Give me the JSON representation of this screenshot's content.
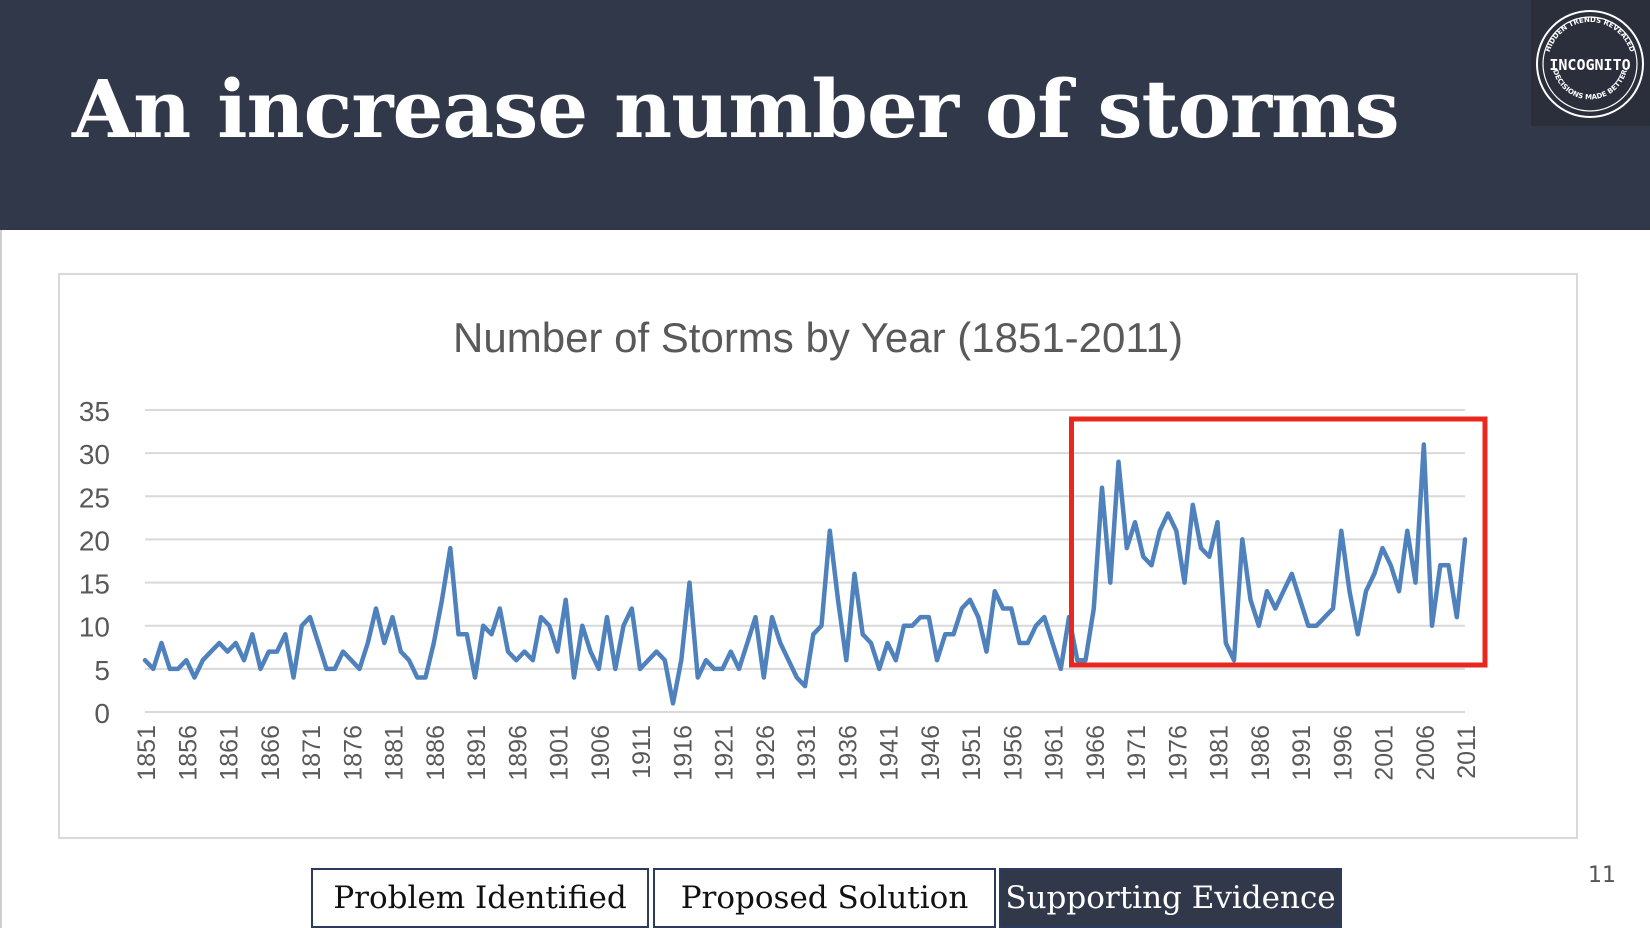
{
  "slide": {
    "title": "An increase number of storms",
    "page_number": "11"
  },
  "logo": {
    "name": "INCOGNITO",
    "arc_top": "HIDDEN TRENDS REVEALED",
    "arc_bottom": "DECISIONS MADE BETTER"
  },
  "nav": {
    "items": [
      "Problem Identified",
      "Proposed Solution",
      "Supporting Evidence"
    ],
    "active": "Supporting Evidence"
  },
  "colors": {
    "header_bg": "#313849",
    "line": "#4f81bd",
    "highlight": "#e8281e",
    "grid": "#d9d9d9"
  },
  "chart_data": {
    "type": "line",
    "title": "Number of Storms by Year (1851-2011)",
    "xlabel": "",
    "ylabel": "",
    "ylim": [
      0,
      35
    ],
    "yticks": [
      0,
      5,
      10,
      15,
      20,
      25,
      30,
      35
    ],
    "x_tick_labels": [
      "1851",
      "1856",
      "1861",
      "1866",
      "1871",
      "1876",
      "1881",
      "1886",
      "1891",
      "1896",
      "1901",
      "1906",
      "1911",
      "1916",
      "1921",
      "1926",
      "1931",
      "1936",
      "1941",
      "1946",
      "1951",
      "1956",
      "1961",
      "1966",
      "1971",
      "1976",
      "1981",
      "1986",
      "1991",
      "1996",
      "2001",
      "2006",
      "2011"
    ],
    "x_start": 1851,
    "x_end": 2011,
    "highlight_range": [
      1965,
      2011
    ],
    "legend": "none",
    "series": [
      {
        "name": "Number of Storms",
        "years": [
          1851,
          1852,
          1853,
          1854,
          1855,
          1856,
          1857,
          1858,
          1859,
          1860,
          1861,
          1862,
          1863,
          1864,
          1865,
          1866,
          1867,
          1868,
          1869,
          1870,
          1871,
          1872,
          1873,
          1874,
          1875,
          1876,
          1877,
          1878,
          1879,
          1880,
          1881,
          1882,
          1883,
          1884,
          1885,
          1886,
          1887,
          1888,
          1889,
          1890,
          1891,
          1892,
          1893,
          1894,
          1895,
          1896,
          1897,
          1898,
          1899,
          1900,
          1901,
          1902,
          1903,
          1904,
          1905,
          1906,
          1907,
          1908,
          1909,
          1910,
          1911,
          1912,
          1913,
          1914,
          1915,
          1916,
          1917,
          1918,
          1919,
          1920,
          1921,
          1922,
          1923,
          1924,
          1925,
          1926,
          1927,
          1928,
          1929,
          1930,
          1931,
          1932,
          1933,
          1934,
          1935,
          1936,
          1937,
          1938,
          1939,
          1940,
          1941,
          1942,
          1943,
          1944,
          1945,
          1946,
          1947,
          1948,
          1949,
          1950,
          1951,
          1952,
          1953,
          1954,
          1955,
          1956,
          1957,
          1958,
          1959,
          1960,
          1961,
          1962,
          1963,
          1964,
          1965,
          1966,
          1967,
          1968,
          1969,
          1970,
          1971,
          1972,
          1973,
          1974,
          1975,
          1976,
          1977,
          1978,
          1979,
          1980,
          1981,
          1982,
          1983,
          1984,
          1985,
          1986,
          1987,
          1988,
          1989,
          1990,
          1991,
          1992,
          1993,
          1994,
          1995,
          1996,
          1997,
          1998,
          1999,
          2000,
          2001,
          2002,
          2003,
          2004,
          2005,
          2006,
          2007,
          2008,
          2009,
          2010,
          2011
        ],
        "values": [
          6,
          5,
          8,
          5,
          5,
          6,
          4,
          6,
          7,
          8,
          7,
          8,
          6,
          9,
          5,
          7,
          7,
          9,
          4,
          10,
          11,
          8,
          5,
          5,
          7,
          6,
          5,
          8,
          12,
          8,
          11,
          7,
          6,
          4,
          4,
          8,
          13,
          19,
          9,
          9,
          4,
          10,
          9,
          12,
          7,
          6,
          7,
          6,
          11,
          10,
          7,
          13,
          4,
          10,
          7,
          5,
          11,
          5,
          10,
          12,
          5,
          6,
          7,
          6,
          1,
          6,
          15,
          4,
          6,
          5,
          5,
          7,
          5,
          8,
          11,
          4,
          11,
          8,
          6,
          4,
          3,
          9,
          10,
          21,
          13,
          6,
          16,
          9,
          8,
          5,
          8,
          6,
          10,
          10,
          11,
          11,
          6,
          9,
          9,
          12,
          13,
          11,
          7,
          14,
          12,
          12,
          8,
          8,
          10,
          11,
          8,
          5,
          11,
          6,
          6,
          12,
          26,
          15,
          29,
          19,
          22,
          18,
          17,
          21,
          23,
          21,
          15,
          24,
          19,
          18,
          22,
          8,
          6,
          20,
          13,
          10,
          14,
          12,
          14,
          16,
          13,
          10,
          10,
          11,
          12,
          21,
          14,
          9,
          14,
          16,
          19,
          17,
          14,
          21,
          15,
          31,
          10,
          17,
          17,
          11,
          20
        ]
      }
    ]
  }
}
